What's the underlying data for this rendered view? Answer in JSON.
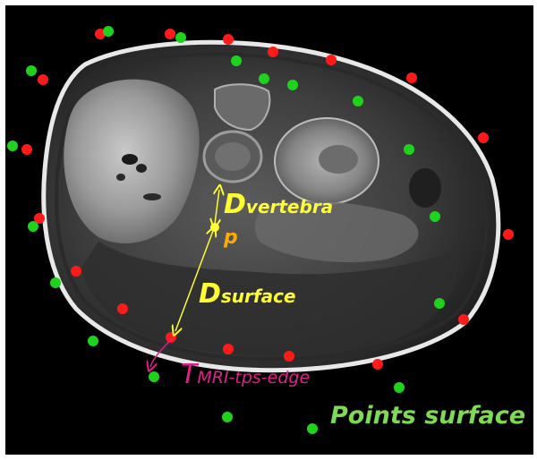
{
  "figure": {
    "labels": {
      "d_vertebra": {
        "big": "D",
        "small": "vertebra",
        "color": "#ffff33"
      },
      "p_point": {
        "text": "p",
        "color": "#ffaa00"
      },
      "d_surface": {
        "big": "D",
        "small": "surface",
        "color": "#ffff33"
      },
      "t_mri": {
        "big": "T",
        "small": "MRI-tps-edge",
        "color": "#e0208a"
      },
      "points_surface": {
        "text": "Points surface",
        "color": "#7ed957"
      }
    },
    "colors": {
      "background": "#000000",
      "skin_outline": "#e8e8e8",
      "red_points": "#ff1a1a",
      "green_points": "#1ed21e",
      "measurement_line": "#ffff33"
    }
  }
}
